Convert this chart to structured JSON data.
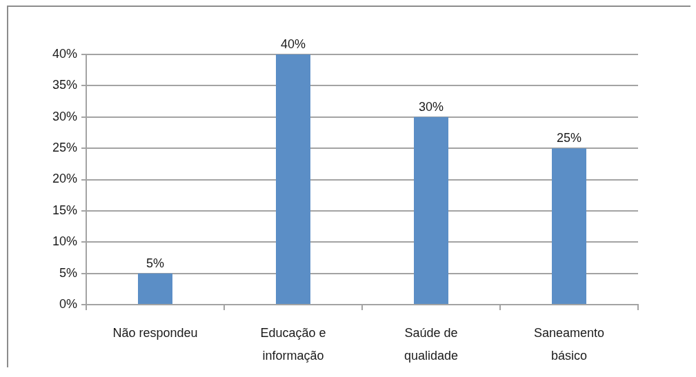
{
  "chart_data": {
    "type": "bar",
    "categories": [
      "Não respondeu",
      "Educação e informação",
      "Saúde de qualidade",
      "Saneamento básico"
    ],
    "values": [
      5,
      40,
      30,
      25
    ],
    "color": "#5b8ec6",
    "ylim": [
      0,
      40
    ],
    "yticks": [
      {
        "value": 0,
        "label": "0%"
      },
      {
        "value": 5,
        "label": "5%"
      },
      {
        "value": 10,
        "label": "10%"
      },
      {
        "value": 15,
        "label": "15%"
      },
      {
        "value": 20,
        "label": "20%"
      },
      {
        "value": 25,
        "label": "25%"
      },
      {
        "value": 30,
        "label": "30%"
      },
      {
        "value": 35,
        "label": "35%"
      },
      {
        "value": 40,
        "label": "40%"
      }
    ],
    "value_labels": [
      "5%",
      "40%",
      "30%",
      "25%"
    ],
    "grid": "y",
    "legend": false
  }
}
